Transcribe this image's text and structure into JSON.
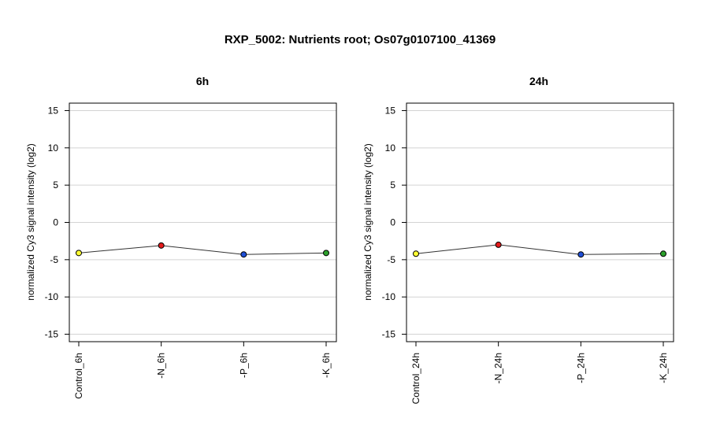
{
  "figure": {
    "title": "RXP_5002: Nutrients root; Os07g0107100_41369"
  },
  "chart_data": [
    {
      "type": "line",
      "title": "6h",
      "xlabel": "",
      "ylabel": "normalized Cy3 signal intensity (log2)",
      "categories": [
        "Control_6h",
        "-N_6h",
        "-P_6h",
        "-K_6h"
      ],
      "values": [
        -4.1,
        -3.1,
        -4.3,
        -4.1
      ],
      "point_colors": [
        "#ffff33",
        "#e41a1c",
        "#1f4fd6",
        "#2ca02c"
      ],
      "ylim": [
        -16,
        16
      ],
      "yticks": [
        -15,
        -10,
        -5,
        0,
        5,
        10,
        15
      ],
      "grid": true
    },
    {
      "type": "line",
      "title": "24h",
      "xlabel": "",
      "ylabel": "normalized Cy3 signal intensity (log2)",
      "categories": [
        "Control_24h",
        "-N_24h",
        "-P_24h",
        "-K_24h"
      ],
      "values": [
        -4.2,
        -3.0,
        -4.3,
        -4.2
      ],
      "point_colors": [
        "#ffff33",
        "#e41a1c",
        "#1f4fd6",
        "#2ca02c"
      ],
      "ylim": [
        -16,
        16
      ],
      "yticks": [
        -15,
        -10,
        -5,
        0,
        5,
        10,
        15
      ],
      "grid": true
    }
  ]
}
